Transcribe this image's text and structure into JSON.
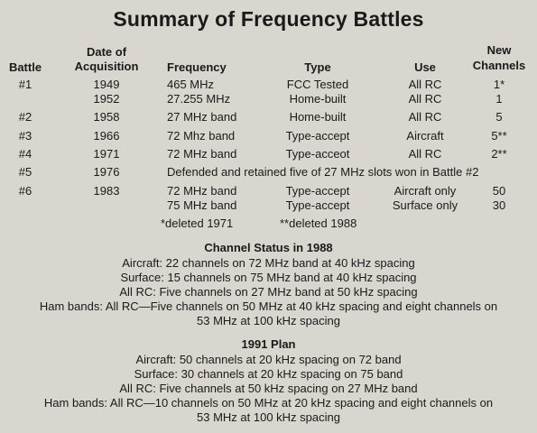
{
  "title": "Summary of Frequency Battles",
  "headers": {
    "battle": "Battle",
    "date_line1": "Date of",
    "date_line2": "Acquisition",
    "frequency": "Frequency",
    "type": "Type",
    "use": "Use",
    "new_line1": "New",
    "new_line2": "Channels"
  },
  "rows": [
    {
      "battle": "#1",
      "date": "1949",
      "frequency": "465 MHz",
      "type": "FCC Tested",
      "use": "All RC",
      "channels": "1*"
    },
    {
      "battle": "",
      "date": "1952",
      "frequency": "27.255 MHz",
      "type": "Home-built",
      "use": "All RC",
      "channels": "1"
    },
    {
      "battle": "#2",
      "date": "1958",
      "frequency": "27 MHz band",
      "type": "Home-built",
      "use": "All RC",
      "channels": "5"
    },
    {
      "battle": "#3",
      "date": "1966",
      "frequency": "72 Mhz band",
      "type": "Type-accept",
      "use": "Aircraft",
      "channels": "5**"
    },
    {
      "battle": "#4",
      "date": "1971",
      "frequency": "72 MHz band",
      "type": "Type-acceot",
      "use": "All RC",
      "channels": "2**"
    },
    {
      "battle": "#5",
      "date": "1976",
      "note": "Defended and retained five of 27 MHz slots won in Battle #2"
    },
    {
      "battle": "#6",
      "date": "1983",
      "frequency": "72 MHz band",
      "type": "Type-accept",
      "use": "Aircraft only",
      "channels": "50"
    },
    {
      "battle": "",
      "date": "",
      "frequency": "75 MHz band",
      "type": "Type-accept",
      "use": "Surface only",
      "channels": "30"
    }
  ],
  "footnotes": {
    "single": "*deleted 1971",
    "double": "**deleted 1988"
  },
  "channel_status": {
    "title": "Channel Status in 1988",
    "lines": [
      "Aircraft: 22 channels on 72 MHz band at 40 kHz spacing",
      "Surface: 15 channels on 75 MHz band at 40 kHz spacing",
      "All RC: Five channels on 27 MHz band at 50 kHz spacing",
      "Ham bands: All RC—Five channels on 50 MHz at 40 kHz spacing and eight channels on",
      "53 MHz at 100 kHz spacing"
    ]
  },
  "plan": {
    "title": "1991 Plan",
    "lines": [
      "Aircraft: 50 channels at 20 kHz spacing on 72 band",
      "Surface: 30 channels at 20 kHz spacing on 75 band",
      "All RC: Five channels at 50 kHz spacing on 27 MHz band",
      "Ham bands: All RC—10 channels on 50 MHz at 20 kHz spacing and eight channels on",
      "53 MHz at 100 kHz spacing"
    ]
  }
}
